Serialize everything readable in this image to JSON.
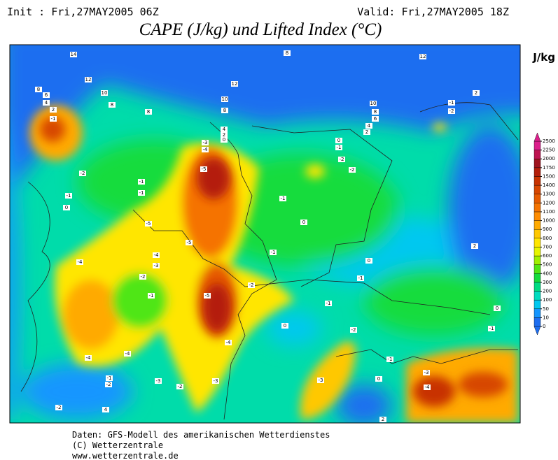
{
  "header": {
    "init": "Init : Fri,27MAY2005 06Z",
    "valid": "Valid: Fri,27MAY2005 18Z",
    "title": "CAPE (J/kg) und Lifted Index (°C)"
  },
  "colorbar": {
    "unit": "J/kg",
    "levels": [
      0,
      10,
      50,
      100,
      200,
      300,
      400,
      500,
      600,
      700,
      800,
      900,
      1000,
      1100,
      1200,
      1300,
      1400,
      1500,
      1750,
      2000,
      2250,
      2500
    ],
    "colors": [
      "#1e6ef0",
      "#1496ff",
      "#00c8f0",
      "#00dcc0",
      "#00dc82",
      "#14dc3c",
      "#50e614",
      "#a0f000",
      "#e6f500",
      "#ffe600",
      "#ffc800",
      "#ffaa00",
      "#ff8c00",
      "#f57300",
      "#e65a00",
      "#d74600",
      "#c83200",
      "#b41e0a",
      "#a0141e",
      "#be1450",
      "#dc1e8c"
    ]
  },
  "contour_labels": [
    14,
    12,
    10,
    8,
    8,
    8,
    6,
    4,
    2,
    -1,
    12,
    10,
    8,
    4,
    2,
    0,
    8,
    12,
    10,
    8,
    6,
    4,
    2,
    2,
    -1,
    -2,
    -3,
    -4,
    -5,
    0,
    -1,
    -2,
    -2,
    -2,
    -1,
    0,
    -1,
    -1,
    -1,
    0,
    -5,
    -5,
    -4,
    -3,
    -4,
    -2,
    -1,
    -5,
    -2,
    -1,
    0,
    -1,
    -1,
    0,
    -2,
    -4,
    -4,
    -4,
    -1,
    -3,
    -4,
    -1,
    -2,
    -3,
    -2,
    -3,
    -3,
    0,
    2,
    -1,
    0,
    -2,
    4,
    2
  ],
  "footer": [
    "Daten: GFS-Modell des amerikanischen Wetterdienstes",
    "(C) Wetterzentrale",
    "www.wetterzentrale.de"
  ]
}
